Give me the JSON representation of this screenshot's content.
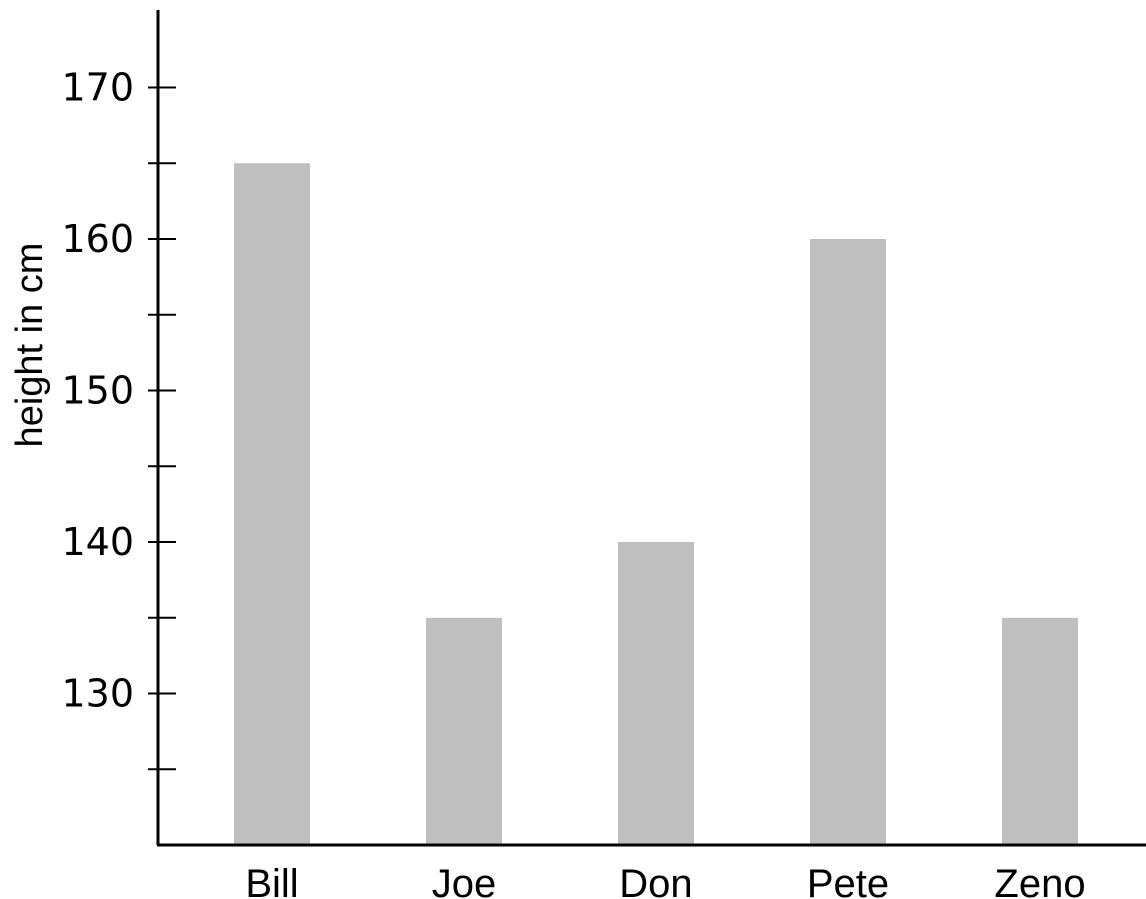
{
  "chart_data": {
    "type": "bar",
    "categories": [
      "Bill",
      "Joe",
      "Don",
      "Pete",
      "Zeno"
    ],
    "values": [
      165,
      135,
      140,
      160,
      135
    ],
    "xlabel": "",
    "ylabel": "height in cm",
    "ylim": [
      120,
      175
    ],
    "yticks": [
      130,
      140,
      150,
      160,
      170
    ],
    "yminor_ticks": [
      125,
      135,
      145,
      155,
      165
    ],
    "grid": false,
    "bar_color": "#bfbfbf"
  }
}
